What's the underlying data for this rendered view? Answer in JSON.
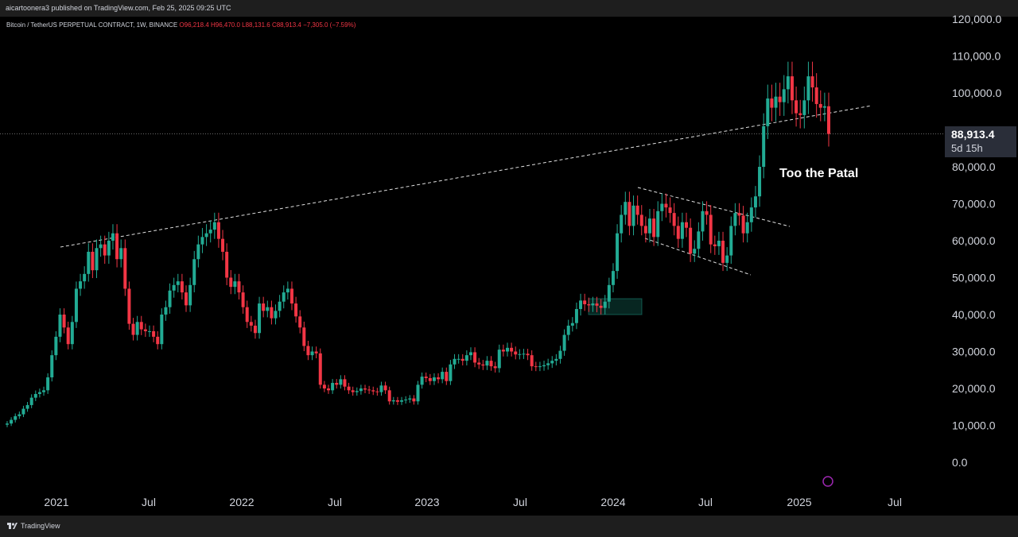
{
  "header": {
    "published": "aicartoonera3 published on TradingView.com, Feb 25, 2025 09:25 UTC"
  },
  "symbol": {
    "name": "Bitcoin / TetherUS PERPETUAL CONTRACT, 1W, BINANCE",
    "ohlc": "O96,218.4  H96,470.0  L88,131.6  C88,913.4  −7,305.0 (−7.59%)"
  },
  "footer": {
    "brand": "TradingView"
  },
  "last": {
    "price": "88,913.4",
    "countdown": "5d 15h"
  },
  "colors": {
    "up": "#22ab94",
    "down": "#f23645",
    "background": "#000000",
    "text": "#d1d4dc"
  },
  "chart_data": {
    "type": "candlestick",
    "ylim": [
      0,
      120000
    ],
    "yticks": [
      "120,000.0",
      "110,000.0",
      "100,000.0",
      "90,000.0",
      "80,000.0",
      "70,000.0",
      "60,000.0",
      "50,000.0",
      "40,000.0",
      "30,000.0",
      "20,000.0",
      "10,000.0",
      "0.0"
    ],
    "xticks": [
      "2021",
      "Jul",
      "2022",
      "Jul",
      "2023",
      "Jul",
      "2024",
      "Jul",
      "2025",
      "Jul"
    ],
    "annotation": "Too the Patal",
    "series": [
      {
        "values": [
          10500,
          11500,
          12500,
          13000,
          14500,
          15500,
          17500,
          18500,
          19000,
          19500,
          23000,
          29000,
          34000,
          40000,
          36500,
          32000,
          38000,
          47000,
          49000,
          51000,
          57000,
          52000,
          58000,
          59000,
          56000,
          60000,
          62000,
          55000,
          58000,
          47000,
          37500,
          34500,
          38000,
          36000,
          35500,
          35500,
          34000,
          32000,
          40000,
          42000,
          46500,
          48000,
          49000,
          46000,
          42500,
          48000,
          55000,
          59000,
          61000,
          62000,
          63000,
          65000,
          60500,
          57000,
          50000,
          47500,
          49000,
          46000,
          42000,
          38000,
          37000,
          35000,
          43000,
          41000,
          42000,
          39000,
          41000,
          43500,
          46000,
          47000,
          43000,
          39500,
          36500,
          31500,
          29000,
          30000,
          29500,
          21000,
          20000,
          19500,
          21500,
          21000,
          22500,
          20500,
          19500,
          19000,
          19300,
          20000,
          19700,
          19500,
          19200,
          19000,
          20800,
          19500,
          16500,
          16800,
          16400,
          16800,
          17000,
          17300,
          16500,
          21000,
          23200,
          22800,
          22000,
          23000,
          22500,
          24500,
          22000,
          26500,
          28000,
          28000,
          27500,
          29000,
          29800,
          27000,
          26500,
          26200,
          27500,
          26000,
          25500,
          30500,
          30000,
          31000,
          30000,
          29200,
          29300,
          29400,
          29000,
          26000,
          25900,
          26000,
          26300,
          26800,
          27500,
          28000,
          30200,
          34500,
          37000,
          37700,
          41500,
          43800,
          42800,
          42500,
          43000,
          42400,
          41800,
          43500,
          48000,
          51800,
          62000,
          67000,
          70500,
          64000,
          69500,
          67000,
          64000,
          62000,
          66000,
          61000,
          68000,
          70000,
          69000,
          67500,
          64000,
          60500,
          65000,
          63500,
          56500,
          57800,
          62500,
          68000,
          67000,
          59000,
          58500,
          60000,
          54000,
          56000,
          64000,
          67500,
          66800,
          62000,
          65000,
          69000,
          72000,
          80000,
          91000,
          98500,
          96000,
          99000,
          97500,
          101000,
          104500,
          98000,
          94500,
          94000,
          98000,
          104500,
          101500,
          97000,
          96000,
          96400,
          88900
        ]
      }
    ]
  }
}
